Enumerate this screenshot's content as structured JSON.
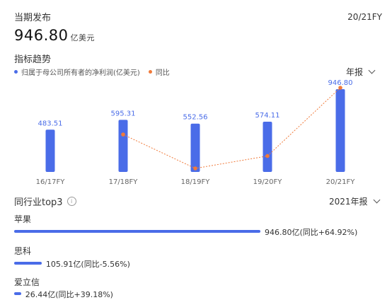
{
  "header": {
    "latest_label": "当期发布",
    "fiscal_year": "20/21FY",
    "value": "946.80",
    "unit": "亿美元"
  },
  "trend": {
    "title": "指标趋势",
    "legend_series1": "归属于母公司所有者的净利润(亿美元)",
    "legend_series2": "同比",
    "period_select": "年报"
  },
  "colors": {
    "bar": "#4a6ce8",
    "yoy": "#f07a3a"
  },
  "chart_data": {
    "type": "bar",
    "categories": [
      "16/17FY",
      "17/18FY",
      "18/19FY",
      "19/20FY",
      "20/21FY"
    ],
    "series": [
      {
        "name": "归属于母公司所有者的净利润(亿美元)",
        "values": [
          483.51,
          595.31,
          552.56,
          574.11,
          946.8
        ],
        "labels": [
          "483.51",
          "595.31",
          "552.56",
          "574.11",
          "946.80"
        ]
      },
      {
        "name": "同比",
        "type": "line",
        "values": [
          null,
          23.1,
          -7.2,
          3.9,
          64.92
        ]
      }
    ],
    "grid": false
  },
  "peers": {
    "title": "同行业top3",
    "year_select": "2021年报",
    "items": [
      {
        "name": "苹果",
        "value_text": "946.80亿(同比+64.92%)",
        "value": 946.8
      },
      {
        "name": "思科",
        "value_text": "105.91亿(同比-5.56%)",
        "value": 105.91
      },
      {
        "name": "爱立信",
        "value_text": "26.44亿(同比+39.18%)",
        "value": 26.44
      }
    ]
  }
}
